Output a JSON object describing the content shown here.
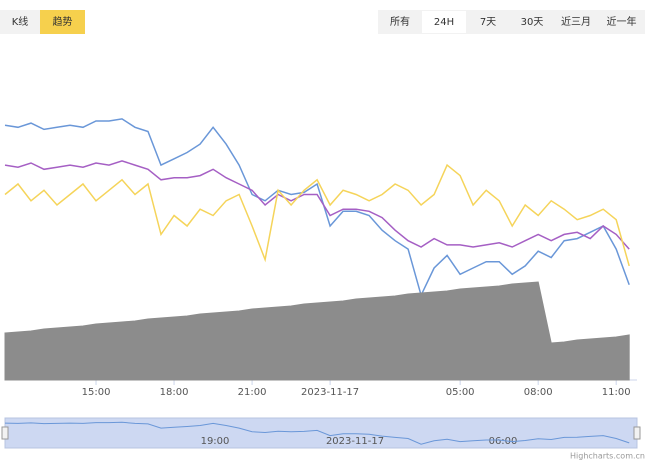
{
  "ui": {
    "left_buttons": [
      "K线",
      "趋势"
    ],
    "active_left": 1,
    "range_buttons": [
      "所有",
      "24H",
      "7天",
      "30天",
      "近三月",
      "近一年"
    ],
    "active_range": 1,
    "navigator_labels": [
      "19:00",
      "2023-11-17",
      "06:00"
    ],
    "credit": "Highcharts.com.cn"
  },
  "chart_data": {
    "type": "line",
    "x": [
      11.5,
      12,
      12.5,
      13,
      13.5,
      14,
      14.5,
      15,
      15.5,
      16,
      16.5,
      17,
      17.5,
      18,
      18.5,
      19,
      19.5,
      20,
      20.5,
      21,
      21.5,
      22,
      22.5,
      23,
      23.5,
      24,
      24.5,
      25,
      25.5,
      26,
      26.5,
      27,
      27.5,
      28,
      28.5,
      29,
      29.5,
      30,
      30.5,
      31,
      31.5,
      32,
      32.5,
      33,
      33.5,
      34,
      34.5,
      35,
      35.5
    ],
    "xlim": [
      11.5,
      35.8
    ],
    "xticks": [
      {
        "value": 15,
        "label": "15:00"
      },
      {
        "value": 18,
        "label": "18:00"
      },
      {
        "value": 21,
        "label": "21:00"
      },
      {
        "value": 24,
        "label": "2023-11-17"
      },
      {
        "value": 29,
        "label": "05:00"
      },
      {
        "value": 32,
        "label": "08:00"
      },
      {
        "value": 35,
        "label": "11:00"
      }
    ],
    "ylim": [
      0,
      100
    ],
    "y2lim": [
      0,
      100
    ],
    "grid": false,
    "series": [
      {
        "color": "#6a97d8",
        "values": [
          88,
          87,
          89,
          86,
          87,
          88,
          87,
          90,
          90,
          91,
          87,
          85,
          69,
          72,
          75,
          79,
          87,
          79,
          69,
          55,
          52,
          57,
          55,
          56,
          60,
          40,
          47,
          47,
          45,
          38,
          33,
          29,
          7,
          20,
          26,
          17,
          20,
          23,
          23,
          17,
          21,
          28,
          25,
          33,
          34,
          37,
          40,
          29,
          12
        ]
      },
      {
        "color": "#a55fc4",
        "values": [
          69,
          68,
          70,
          67,
          68,
          69,
          68,
          70,
          69,
          71,
          69,
          67,
          62,
          63,
          63,
          64,
          67,
          63,
          60,
          57,
          50,
          55,
          52,
          55,
          55,
          45,
          48,
          48,
          47,
          44,
          38,
          33,
          30,
          34,
          31,
          31,
          30,
          31,
          32,
          30,
          33,
          36,
          33,
          36,
          37,
          34,
          40,
          36,
          29
        ]
      },
      {
        "color": "#f5d45a",
        "values": [
          55,
          60,
          52,
          57,
          50,
          55,
          60,
          52,
          57,
          62,
          55,
          60,
          36,
          45,
          40,
          48,
          45,
          52,
          55,
          40,
          24,
          57,
          50,
          57,
          62,
          50,
          57,
          55,
          52,
          55,
          60,
          57,
          50,
          55,
          69,
          64,
          50,
          57,
          52,
          40,
          50,
          45,
          52,
          48,
          43,
          45,
          48,
          43,
          21
        ]
      },
      {
        "color": "#8c8c8c",
        "axis": "y2",
        "type": "area",
        "values": [
          47,
          48,
          49,
          51,
          52,
          53,
          54,
          56,
          57,
          58,
          59,
          61,
          62,
          63,
          64,
          66,
          67,
          68,
          69,
          71,
          72,
          73,
          74,
          76,
          77,
          78,
          79,
          81,
          82,
          83,
          84,
          86,
          87,
          88,
          89,
          91,
          92,
          93,
          94,
          96,
          97,
          98,
          37,
          38,
          40,
          41,
          42,
          43,
          45
        ]
      }
    ]
  }
}
